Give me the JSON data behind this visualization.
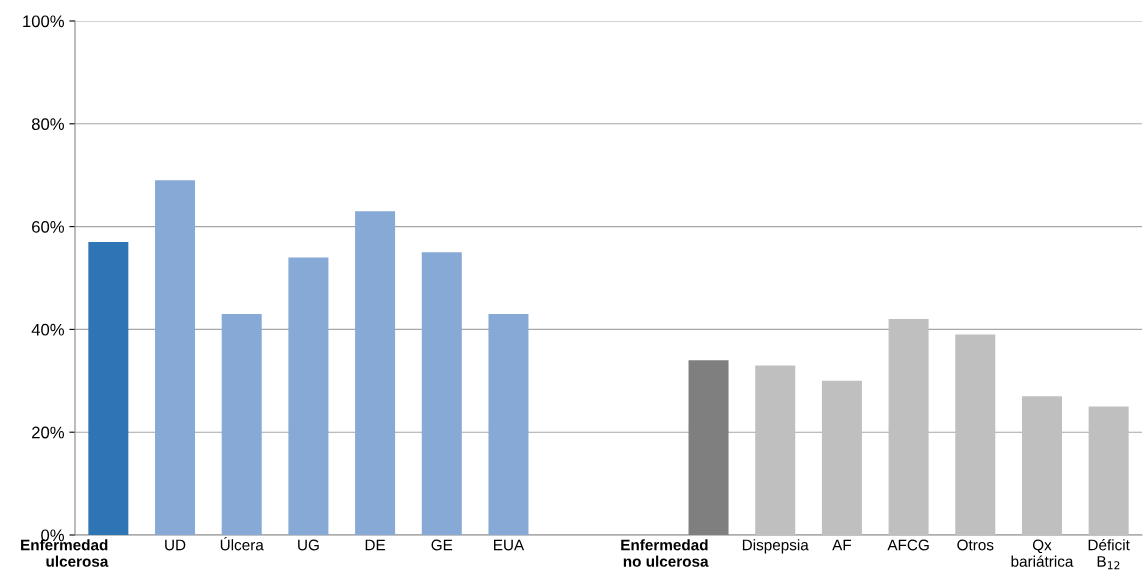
{
  "chart_data": {
    "type": "bar",
    "categories": [
      "Enfermedad\nulcerosa",
      "UD",
      "Úlcera",
      "UG",
      "DE",
      "GE",
      "EUA",
      null,
      null,
      "Enfermedad\nno ulcerosa",
      "Dispepsia",
      "AF",
      "AFCG",
      "Otros",
      "Qx\nbariátrica",
      "Déficit\nB$_{12}$"
    ],
    "values": [
      57,
      69,
      43,
      54,
      63,
      55,
      43,
      null,
      null,
      34,
      33,
      30,
      42,
      39,
      27,
      25
    ],
    "colors": [
      "#2e75b6",
      "#87a9d5",
      "#87a9d5",
      "#87a9d5",
      "#87a9d5",
      "#87a9d5",
      "#87a9d5",
      "#ffffff",
      "#ffffff",
      "#7f7f7f",
      "#bfbfbf",
      "#bfbfbf",
      "#bfbfbf",
      "#bfbfbf",
      "#bfbfbf",
      "#bfbfbf"
    ],
    "ylim": [
      0,
      100
    ],
    "yticks": [
      {
        "value": 0,
        "label": "0%"
      },
      {
        "value": 20,
        "label": "20%"
      },
      {
        "value": 40,
        "label": "40%"
      },
      {
        "value": 60,
        "label": "60%"
      },
      {
        "value": 80,
        "label": "80%"
      },
      {
        "value": 100,
        "label": "100%"
      }
    ],
    "grid": "y"
  }
}
